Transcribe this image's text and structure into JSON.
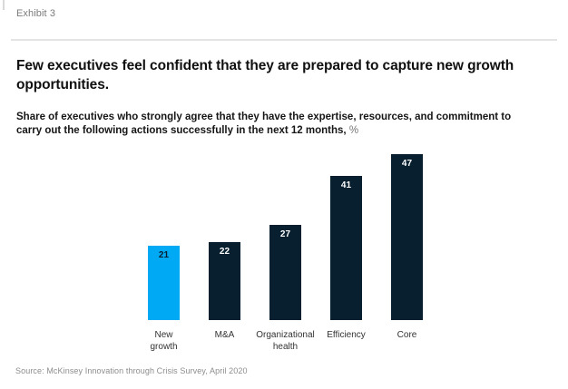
{
  "exhibit_label": "Exhibit 3",
  "title": "Few executives feel confident that they are prepared to capture new growth opportunities.",
  "subtitle": {
    "line1": "Share of executives who strongly agree that they have the expertise, resources, and commitment to",
    "line2": "carry out the following actions successfully in the next 12 months,",
    "suffix": "%"
  },
  "source": "Source: McKinsey Innovation through Crisis Survey, April 2020",
  "colors": {
    "highlight_blue": "#00A9F4",
    "deep_navy": "#081F30",
    "divider_gray": "#e4e4e4",
    "muted_text": "#7b7b7d"
  },
  "chart_data": {
    "type": "bar",
    "title": "Few executives feel confident that they are prepared to capture new growth opportunities.",
    "subtitle": "Share of executives who strongly agree that they have the expertise, resources, and commitment to carry out the following actions successfully in the next 12 months, %",
    "categories": [
      "New growth",
      "M&A",
      "Organizational health",
      "Efficiency",
      "Core"
    ],
    "category_label_lines": [
      [
        "New",
        "growth"
      ],
      [
        "M&A"
      ],
      [
        "Organizational",
        "health"
      ],
      [
        "Efficiency"
      ],
      [
        "Core"
      ]
    ],
    "values": [
      21,
      22,
      27,
      41,
      47
    ],
    "bar_colors": [
      "#00A9F4",
      "#081F30",
      "#081F30",
      "#081F30",
      "#081F30"
    ],
    "value_label_colors": [
      "#081F30",
      "#ffffff",
      "#ffffff",
      "#ffffff",
      "#ffffff"
    ],
    "value_label_position": "inside-top",
    "highlighted_category": "New growth",
    "xlabel": "",
    "ylabel": "",
    "ylim": [
      0,
      50
    ],
    "grid": false,
    "legend": false,
    "axis_lines": false
  }
}
